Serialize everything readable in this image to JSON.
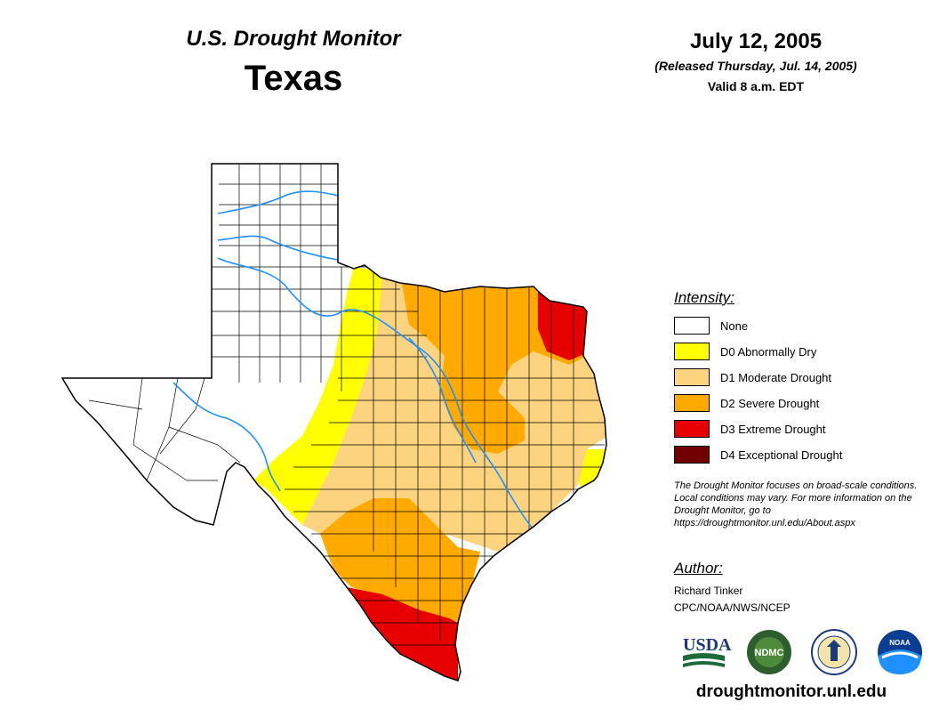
{
  "header": {
    "title": "U.S. Drought Monitor",
    "state": "Texas",
    "date": "July 12, 2005",
    "released": "(Released Thursday, Jul. 14, 2005)",
    "valid": "Valid 8 a.m. EDT"
  },
  "legend": {
    "title": "Intensity:",
    "items": [
      {
        "label": "None",
        "color": "#ffffff"
      },
      {
        "label": "D0 Abnormally Dry",
        "color": "#ffff00"
      },
      {
        "label": "D1 Moderate Drought",
        "color": "#fcd37f"
      },
      {
        "label": "D2 Severe Drought",
        "color": "#ffaa00"
      },
      {
        "label": "D3 Extreme Drought",
        "color": "#e60000"
      },
      {
        "label": "D4 Exceptional Drought",
        "color": "#730000"
      }
    ]
  },
  "note": "The Drought Monitor focuses on broad-scale conditions. Local conditions may vary. For more information on the Drought Monitor, go to https://droughtmonitor.unl.edu/About.aspx",
  "author": {
    "title": "Author:",
    "name": "Richard Tinker",
    "org": "CPC/NOAA/NWS/NCEP"
  },
  "logos": {
    "usda": "USDA",
    "ndmc": "NDMC",
    "noaa": "NOAA"
  },
  "site_url": "droughtmonitor.unl.edu",
  "map_colors": {
    "outline": "#000000",
    "county_lines": "#000000",
    "rivers": "#1e90ff"
  }
}
